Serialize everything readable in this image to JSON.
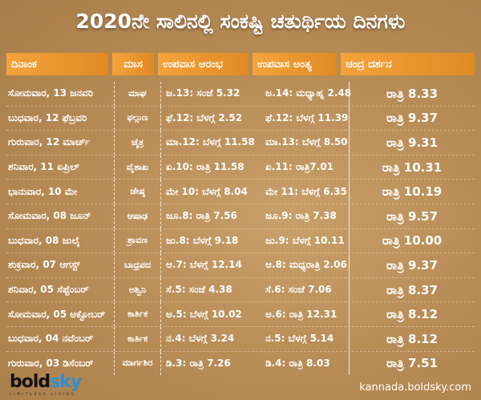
{
  "title": "2020ನೇ ಸಾಲಿನಲ್ಲಿ ಸಂಕಷ್ಟಿ ಚತುರ್ಥಿಯ ದಿನಗಳು",
  "headers": [
    "ದಿನಾಂಕ",
    "ಮಾಸ",
    "ಉಪವಾಸ ಆರಂಭ",
    "ಉಪವಾಸ ಅಂತ್ಯ",
    "ಚಂದ್ರ ದರ್ಶನ"
  ],
  "rows": [
    [
      "ಸೋಮವಾರ, 13 ಜನವರಿ",
      "ಮಾಘ",
      "ಜ.13: ಸಂಜೆ 5.32",
      "ಜ.14: ಮಧ್ಯಾಹ್ನ 2.48",
      "ರಾತ್ರಿ 8.33"
    ],
    [
      "ಬುಧವಾರ, 12 ಫೆಬ್ರವರಿ",
      "ಫಲ್ಗುಣ",
      "ಫೆ.12: ಬೆಳಗ್ಗೆ 2.52",
      "ಫೆ.12: ಬೆಳಗ್ಗೆ 11.39",
      "ರಾತ್ರಿ 9.37"
    ],
    [
      "ಗುರುವಾರ, 12 ಮಾರ್ಚ್",
      "ಚೈತ್ರ",
      "ಮಾ.12: ಬೆಳಗ್ಗೆ 11.58",
      "ಮಾ.13: ಬೆಳಗ್ಗೆ 8.50",
      "ರಾತ್ರಿ 9.31"
    ],
    [
      "ಶನಿವಾರ, 11 ಏಪ್ರಿಲ್",
      "ವೈಶಾಖ",
      "ಏ.10: ರಾತ್ರಿ 11.58",
      "ಏ.11: ರಾತ್ರಿ7.01",
      "ರಾತ್ರಿ 10.31"
    ],
    [
      "ಭಾನುವಾರ, 10 ಮೇ",
      "ಜೇಷ್ಠ",
      "ಮೇ 10: ಬೆಳಗ್ಗೆ 8.04",
      "ಮೇ 11: ಬೆಳಗ್ಗೆ 6.35",
      "ರಾತ್ರಿ 10.19"
    ],
    [
      "ಸೋಮವಾರ, 08 ಜೂನ್",
      "ಆಷಾಢ",
      "ಜೂ.8: ರಾತ್ರಿ 7.56",
      "ಜೂ.9: ರಾತ್ರಿ 7.38",
      "ರಾತ್ರಿ 9.57"
    ],
    [
      "ಬುಧವಾರ, 08 ಜುಲೈ",
      "ಶ್ರಾವಣ",
      "ಜು.8: ಬೆಳಗ್ಗೆ 9.18",
      "ಜು.9: ಬೆಳಗ್ಗೆ 10.11",
      "ರಾತ್ರಿ 10.00"
    ],
    [
      "ಶುಕ್ರವಾರ, 07 ಆಗಸ್ಟ್",
      "ಬಾಧ್ರಪದ",
      "ಆ.7: ಬೆಳಗ್ಗೆ 12.14",
      "ಆ.8: ಮಧ್ಯರಾತ್ರಿ 2.06",
      "ರಾತ್ರಿ 9.37"
    ],
    [
      "ಶನಿವಾರ, 05 ಸೆಪ್ಟೆಂಬರ್",
      "ಅಶ್ವಿನಿ",
      "ಸೆ.5: ಸಂಜೆ 4.38",
      "ಸೆ.6: ಸಂಜೆ 7.06",
      "ರಾತ್ರಿ 8.37"
    ],
    [
      "ಸೋಮವಾರ, 05 ಅಕ್ಟೋಬರ್",
      "ಕಾರ್ತಿಕ",
      "ಅ.5: ಬೆಳಗ್ಗೆ 10.02",
      "ಅ.6: ರಾತ್ರಿ 12.31",
      "ರಾತ್ರಿ 8.12"
    ],
    [
      "ಬುಧವಾರ, 04 ನವೆಂಬರ್",
      "ಕಾರ್ತಿಕ",
      "ನ.4: ಬೆಳಗ್ಗೆ 3.24",
      "ನ.5: ಬೆಳಗ್ಗೆ 5.14",
      "ರಾತ್ರಿ 8.12"
    ],
    [
      "ಗುರುವಾರ, 03 ಡಿಸೆಂಬರ್",
      "ಮಾರ್ಗಶಿರ",
      "ಡಿ.3: ರಾತ್ರಿ 7.26",
      "ಡಿ.4: ರಾತ್ರಿ 8.03",
      "ರಾತ್ರಿ 7.51"
    ]
  ],
  "logo": {
    "bold": "bold",
    "sky": "sky",
    "tagline": "LIMITLESS LIVING",
    "brand_color": "#2c8fd6"
  },
  "site": "kannada.boldsky.com"
}
